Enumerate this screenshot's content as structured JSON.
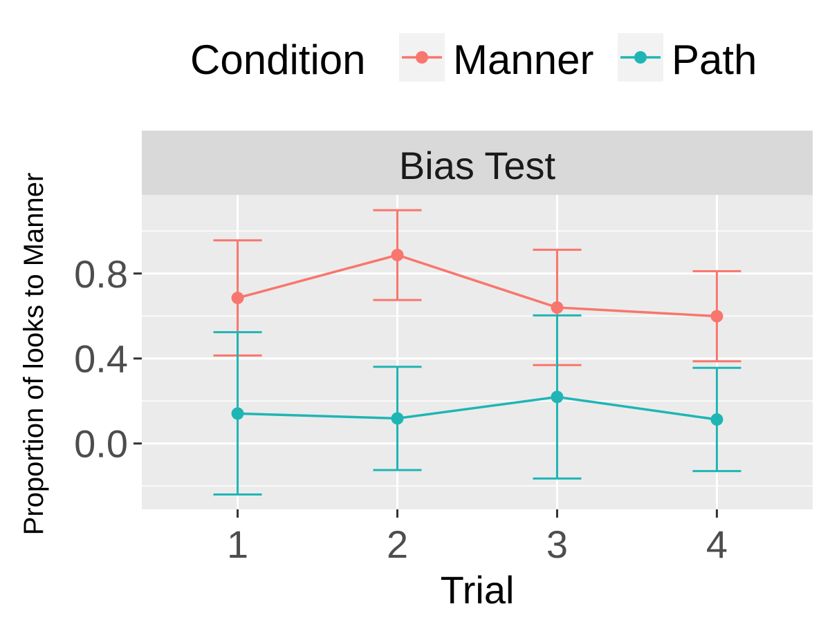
{
  "chart_data": {
    "type": "line",
    "facet_label": "Bias Test",
    "xlabel": "Trial",
    "ylabel": "Proportion of looks to Manner",
    "x": [
      1,
      2,
      3,
      4
    ],
    "x_tick_labels": [
      "1",
      "2",
      "3",
      "4"
    ],
    "y_ticks": [
      0.0,
      0.4,
      0.8
    ],
    "y_tick_labels": [
      "0.0",
      "0.4",
      "0.8"
    ],
    "ylim": [
      -0.31,
      1.17
    ],
    "xlim": [
      0.4,
      4.6
    ],
    "grid": true,
    "legend": {
      "title": "Condition",
      "position": "top"
    },
    "series": [
      {
        "name": "Manner",
        "color": "#F8766D",
        "values": [
          0.685,
          0.887,
          0.64,
          0.599
        ],
        "error_low": [
          0.414,
          0.675,
          0.369,
          0.387
        ],
        "error_high": [
          0.956,
          1.098,
          0.912,
          0.811
        ]
      },
      {
        "name": "Path",
        "color": "#1FB5B5",
        "values": [
          0.141,
          0.118,
          0.219,
          0.113
        ],
        "error_low": [
          -0.24,
          -0.125,
          -0.165,
          -0.13
        ],
        "error_high": [
          0.524,
          0.361,
          0.603,
          0.356
        ]
      }
    ]
  }
}
